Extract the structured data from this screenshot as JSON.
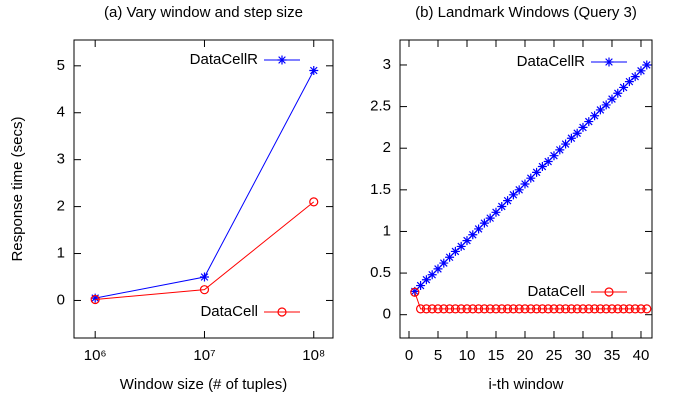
{
  "chart_data": [
    {
      "type": "line",
      "title": "(a) Vary window and step size",
      "x_label": "Window size (# of tuples)",
      "y_label": "Response time (secs)",
      "x": [
        1000000,
        10000000,
        100000000
      ],
      "xscale": "log",
      "xlim": [
        640000,
        150000000
      ],
      "xticks": [
        {
          "value": 1000000,
          "label": "10⁶"
        },
        {
          "value": 10000000,
          "label": "10⁷"
        },
        {
          "value": 100000000,
          "label": "10⁸"
        }
      ],
      "ylim": [
        -0.8,
        5.55
      ],
      "yticks": [
        0,
        1,
        2,
        3,
        4,
        5
      ],
      "series": [
        {
          "name": "DataCellR",
          "color": "#0000ff",
          "marker": "star",
          "values": [
            0.05,
            0.5,
            4.9
          ]
        },
        {
          "name": "DataCell",
          "color": "#ff0000",
          "marker": "circle",
          "values": [
            0.02,
            0.23,
            2.1
          ]
        }
      ]
    },
    {
      "type": "line",
      "title": "(b) Landmark Windows (Query 3)",
      "x_label": "i-th window",
      "x": [
        1,
        2,
        3,
        4,
        5,
        6,
        7,
        8,
        9,
        10,
        11,
        12,
        13,
        14,
        15,
        16,
        17,
        18,
        19,
        20,
        21,
        22,
        23,
        24,
        25,
        26,
        27,
        28,
        29,
        30,
        31,
        32,
        33,
        34,
        35,
        36,
        37,
        38,
        39,
        40,
        41
      ],
      "xscale": "linear",
      "xlim": [
        -1.55,
        41.9
      ],
      "xticks": [
        0,
        5,
        10,
        15,
        20,
        25,
        30,
        35,
        40
      ],
      "ylim": [
        -0.28,
        3.3
      ],
      "yticks": [
        0,
        0.5,
        1,
        1.5,
        2,
        2.5,
        3
      ],
      "series": [
        {
          "name": "DataCellR",
          "color": "#0000ff",
          "marker": "star",
          "values": [
            0.28,
            0.35,
            0.42,
            0.48,
            0.55,
            0.62,
            0.69,
            0.76,
            0.82,
            0.89,
            0.96,
            1.03,
            1.1,
            1.16,
            1.23,
            1.3,
            1.37,
            1.44,
            1.5,
            1.57,
            1.64,
            1.71,
            1.78,
            1.84,
            1.91,
            1.98,
            2.05,
            2.12,
            2.18,
            2.25,
            2.32,
            2.39,
            2.46,
            2.52,
            2.59,
            2.66,
            2.73,
            2.8,
            2.86,
            2.93,
            3.0
          ]
        },
        {
          "name": "DataCell",
          "color": "#ff0000",
          "marker": "circle",
          "values": [
            0.27,
            0.07,
            0.07,
            0.07,
            0.07,
            0.07,
            0.07,
            0.07,
            0.07,
            0.07,
            0.07,
            0.07,
            0.07,
            0.07,
            0.07,
            0.07,
            0.07,
            0.07,
            0.07,
            0.07,
            0.07,
            0.07,
            0.07,
            0.07,
            0.07,
            0.07,
            0.07,
            0.07,
            0.07,
            0.07,
            0.07,
            0.07,
            0.07,
            0.07,
            0.07,
            0.07,
            0.07,
            0.07,
            0.07,
            0.07,
            0.07
          ]
        }
      ]
    }
  ]
}
